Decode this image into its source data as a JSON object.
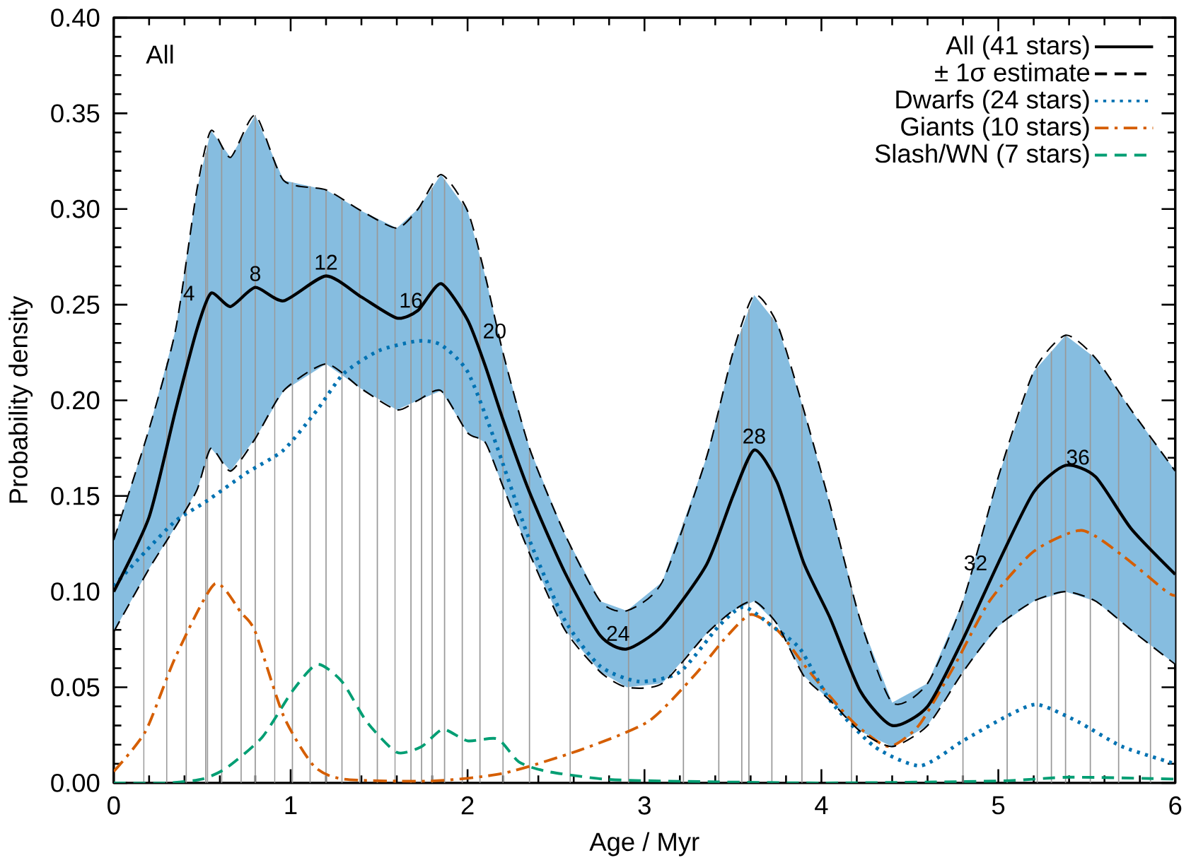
{
  "chart_data": {
    "type": "line",
    "xlabel": "Age / Myr",
    "ylabel": "Probability density",
    "xlim": [
      0,
      6
    ],
    "xticks": [
      0,
      1,
      2,
      3,
      4,
      5,
      6
    ],
    "ylim": [
      0,
      0.4
    ],
    "yticks": [
      {
        "value": 0,
        "label": "0.00"
      },
      {
        "value": 0.05,
        "label": "0.05"
      },
      {
        "value": 0.1,
        "label": "0.10"
      },
      {
        "value": 0.15,
        "label": "0.15"
      },
      {
        "value": 0.2,
        "label": "0.20"
      },
      {
        "value": 0.25,
        "label": "0.25"
      },
      {
        "value": 0.3,
        "label": "0.30"
      },
      {
        "value": 0.35,
        "label": "0.35"
      },
      {
        "value": 0.4,
        "label": "0.40"
      }
    ],
    "legend": "top right",
    "series": [
      {
        "name": "All (41 stars)",
        "color": "#000000",
        "line_style": "solid",
        "x": [
          0,
          0.2,
          0.35,
          0.47,
          0.55,
          0.66,
          0.8,
          0.96,
          1.2,
          1.4,
          1.6,
          1.72,
          1.85,
          2.0,
          2.1,
          2.2,
          2.35,
          2.55,
          2.75,
          2.9,
          3.1,
          3.35,
          3.5,
          3.62,
          3.75,
          3.9,
          4.05,
          4.22,
          4.4,
          4.6,
          4.8,
          5.0,
          5.2,
          5.38,
          5.55,
          5.75,
          6.0
        ],
        "values": [
          0.1,
          0.139,
          0.195,
          0.237,
          0.256,
          0.249,
          0.259,
          0.252,
          0.265,
          0.254,
          0.243,
          0.247,
          0.261,
          0.242,
          0.218,
          0.19,
          0.152,
          0.11,
          0.077,
          0.07,
          0.082,
          0.114,
          0.15,
          0.174,
          0.157,
          0.115,
          0.086,
          0.048,
          0.03,
          0.04,
          0.075,
          0.115,
          0.152,
          0.166,
          0.16,
          0.133,
          0.109
        ],
        "upper": [
          0.127,
          0.185,
          0.237,
          0.31,
          0.341,
          0.327,
          0.349,
          0.315,
          0.31,
          0.299,
          0.29,
          0.3,
          0.318,
          0.299,
          0.265,
          0.225,
          0.175,
          0.13,
          0.095,
          0.09,
          0.105,
          0.17,
          0.225,
          0.255,
          0.24,
          0.195,
          0.145,
          0.085,
          0.042,
          0.052,
          0.095,
          0.16,
          0.215,
          0.234,
          0.222,
          0.195,
          0.163
        ],
        "lower": [
          0.079,
          0.112,
          0.134,
          0.153,
          0.175,
          0.163,
          0.18,
          0.205,
          0.219,
          0.206,
          0.195,
          0.2,
          0.205,
          0.183,
          0.178,
          0.155,
          0.12,
          0.08,
          0.058,
          0.05,
          0.052,
          0.078,
          0.09,
          0.095,
          0.083,
          0.056,
          0.043,
          0.027,
          0.019,
          0.03,
          0.058,
          0.082,
          0.095,
          0.1,
          0.095,
          0.08,
          0.062
        ]
      },
      {
        "name": "± 1σ estimate",
        "color": "#000000",
        "line_style": "dashed",
        "x": [
          0,
          0.2,
          0.35,
          0.47,
          0.55,
          0.66,
          0.8,
          0.96,
          1.2,
          1.4,
          1.6,
          1.72,
          1.85,
          2.0,
          2.1,
          2.2,
          2.35,
          2.55,
          2.75,
          2.9,
          3.1,
          3.35,
          3.5,
          3.62,
          3.75,
          3.9,
          4.05,
          4.22,
          4.4,
          4.6,
          4.8,
          5.0,
          5.2,
          5.38,
          5.55,
          5.75,
          6.0
        ],
        "values": [
          0.127,
          0.185,
          0.237,
          0.31,
          0.341,
          0.327,
          0.349,
          0.315,
          0.31,
          0.299,
          0.29,
          0.3,
          0.318,
          0.299,
          0.265,
          0.225,
          0.175,
          0.13,
          0.095,
          0.09,
          0.105,
          0.17,
          0.225,
          0.255,
          0.24,
          0.195,
          0.145,
          0.085,
          0.042,
          0.052,
          0.095,
          0.16,
          0.215,
          0.234,
          0.222,
          0.195,
          0.163
        ]
      },
      {
        "color": "#000000",
        "line_style": "dashed",
        "x": [
          0,
          0.2,
          0.35,
          0.47,
          0.55,
          0.66,
          0.8,
          0.96,
          1.2,
          1.4,
          1.6,
          1.72,
          1.85,
          2.0,
          2.1,
          2.2,
          2.35,
          2.55,
          2.75,
          2.9,
          3.1,
          3.35,
          3.5,
          3.62,
          3.75,
          3.9,
          4.05,
          4.22,
          4.4,
          4.6,
          4.8,
          5.0,
          5.2,
          5.38,
          5.55,
          5.75,
          6.0
        ],
        "values": [
          0.079,
          0.112,
          0.134,
          0.153,
          0.175,
          0.163,
          0.18,
          0.205,
          0.219,
          0.206,
          0.195,
          0.2,
          0.205,
          0.183,
          0.178,
          0.155,
          0.12,
          0.08,
          0.058,
          0.05,
          0.052,
          0.078,
          0.09,
          0.095,
          0.083,
          0.056,
          0.043,
          0.027,
          0.019,
          0.03,
          0.058,
          0.082,
          0.095,
          0.1,
          0.095,
          0.08,
          0.062
        ]
      },
      {
        "name": "Dwarfs (24 stars)",
        "color": "#0072b2",
        "line_style": "dotted",
        "x": [
          0,
          0.18,
          0.35,
          0.52,
          0.75,
          0.96,
          1.15,
          1.3,
          1.5,
          1.72,
          1.85,
          2.0,
          2.15,
          2.35,
          2.55,
          2.75,
          2.97,
          3.2,
          3.42,
          3.56,
          3.72,
          3.88,
          4.05,
          4.3,
          4.56,
          4.8,
          5.05,
          5.22,
          5.45,
          5.7,
          6.0
        ],
        "values": [
          0.103,
          0.121,
          0.137,
          0.147,
          0.162,
          0.174,
          0.195,
          0.214,
          0.226,
          0.231,
          0.229,
          0.215,
          0.18,
          0.127,
          0.085,
          0.061,
          0.053,
          0.058,
          0.082,
          0.092,
          0.082,
          0.07,
          0.043,
          0.019,
          0.009,
          0.022,
          0.035,
          0.041,
          0.032,
          0.019,
          0.01
        ]
      },
      {
        "name": "Giants (10 stars)",
        "color": "#d55e00",
        "line_style": "dashdot",
        "x": [
          0,
          0.18,
          0.35,
          0.57,
          0.72,
          0.8,
          0.96,
          1.13,
          1.3,
          1.8,
          2.2,
          2.63,
          3.02,
          3.28,
          3.45,
          3.6,
          3.75,
          3.9,
          4.05,
          4.2,
          4.38,
          4.55,
          4.75,
          4.95,
          5.2,
          5.47,
          5.7,
          5.95,
          6.0
        ],
        "values": [
          0.006,
          0.027,
          0.066,
          0.104,
          0.089,
          0.079,
          0.035,
          0.009,
          0.002,
          0.001,
          0.005,
          0.017,
          0.032,
          0.056,
          0.075,
          0.088,
          0.08,
          0.062,
          0.045,
          0.03,
          0.019,
          0.03,
          0.061,
          0.095,
          0.121,
          0.132,
          0.119,
          0.1,
          0.098
        ]
      },
      {
        "name": "Slash/WN (7 stars)",
        "color": "#009e73",
        "line_style": "dashed",
        "x": [
          0,
          0.3,
          0.5,
          0.64,
          0.84,
          1.01,
          1.15,
          1.29,
          1.43,
          1.6,
          1.74,
          1.86,
          2.0,
          2.17,
          2.29,
          2.45,
          2.77,
          3.1,
          4.0,
          5.0,
          5.4,
          6.0
        ],
        "values": [
          0,
          0,
          0.002,
          0.008,
          0.024,
          0.048,
          0.062,
          0.053,
          0.032,
          0.016,
          0.019,
          0.028,
          0.022,
          0.023,
          0.011,
          0.006,
          0.002,
          0.001,
          0,
          0.001,
          0.003,
          0.002
        ]
      }
    ],
    "ref_lines": [
      {
        "axis": "x",
        "value": 0.17,
        "color": "#999999"
      },
      {
        "axis": "x",
        "value": 0.3,
        "color": "#999999"
      },
      {
        "axis": "x",
        "value": 0.41,
        "color": "#999999"
      },
      {
        "axis": "x",
        "value": 0.52,
        "color": "#999999"
      },
      {
        "axis": "x",
        "value": 0.53,
        "color": "#999999"
      },
      {
        "axis": "x",
        "value": 0.61,
        "color": "#999999"
      },
      {
        "axis": "x",
        "value": 0.72,
        "color": "#999999"
      },
      {
        "axis": "x",
        "value": 0.8,
        "color": "#999999"
      },
      {
        "axis": "x",
        "value": 0.91,
        "color": "#999999"
      },
      {
        "axis": "x",
        "value": 1.01,
        "color": "#999999"
      },
      {
        "axis": "x",
        "value": 1.11,
        "color": "#999999"
      },
      {
        "axis": "x",
        "value": 1.2,
        "color": "#999999"
      },
      {
        "axis": "x",
        "value": 1.29,
        "color": "#999999"
      },
      {
        "axis": "x",
        "value": 1.39,
        "color": "#999999"
      },
      {
        "axis": "x",
        "value": 1.49,
        "color": "#999999"
      },
      {
        "axis": "x",
        "value": 1.59,
        "color": "#999999"
      },
      {
        "axis": "x",
        "value": 1.68,
        "color": "#999999"
      },
      {
        "axis": "x",
        "value": 1.74,
        "color": "#999999"
      },
      {
        "axis": "x",
        "value": 1.8,
        "color": "#999999"
      },
      {
        "axis": "x",
        "value": 1.87,
        "color": "#999999"
      },
      {
        "axis": "x",
        "value": 1.97,
        "color": "#999999"
      },
      {
        "axis": "x",
        "value": 2.07,
        "color": "#999999"
      },
      {
        "axis": "x",
        "value": 2.2,
        "color": "#999999"
      },
      {
        "axis": "x",
        "value": 2.35,
        "color": "#999999"
      },
      {
        "axis": "x",
        "value": 2.58,
        "color": "#999999"
      },
      {
        "axis": "x",
        "value": 2.91,
        "color": "#999999"
      },
      {
        "axis": "x",
        "value": 3.22,
        "color": "#999999"
      },
      {
        "axis": "x",
        "value": 3.42,
        "color": "#999999"
      },
      {
        "axis": "x",
        "value": 3.55,
        "color": "#999999"
      },
      {
        "axis": "x",
        "value": 3.59,
        "color": "#999999"
      },
      {
        "axis": "x",
        "value": 3.72,
        "color": "#999999"
      },
      {
        "axis": "x",
        "value": 3.89,
        "color": "#999999"
      },
      {
        "axis": "x",
        "value": 4.17,
        "color": "#999999"
      },
      {
        "axis": "x",
        "value": 4.8,
        "color": "#999999"
      },
      {
        "axis": "x",
        "value": 5.05,
        "color": "#999999"
      },
      {
        "axis": "x",
        "value": 5.22,
        "color": "#999999"
      },
      {
        "axis": "x",
        "value": 5.3,
        "color": "#999999"
      },
      {
        "axis": "x",
        "value": 5.38,
        "color": "#999999"
      },
      {
        "axis": "x",
        "value": 5.52,
        "color": "#999999"
      },
      {
        "axis": "x",
        "value": 5.68,
        "color": "#999999"
      },
      {
        "axis": "x",
        "value": 5.86,
        "color": "#999999"
      }
    ],
    "annotations": [
      "All",
      {
        "text": "4",
        "x": 0.52,
        "y": 0.256
      },
      {
        "text": "8",
        "x": 0.8,
        "y": 0.259
      },
      {
        "text": "12",
        "x": 1.2,
        "y": 0.265
      },
      {
        "text": "16",
        "x": 1.68,
        "y": 0.245
      },
      {
        "text": "20",
        "x": 2.05,
        "y": 0.229
      },
      {
        "text": "24",
        "x": 2.85,
        "y": 0.071
      },
      {
        "text": "28",
        "x": 3.62,
        "y": 0.174
      },
      {
        "text": "32",
        "x": 5.0,
        "y": 0.115
      },
      {
        "text": "36",
        "x": 5.45,
        "y": 0.163
      }
    ]
  }
}
